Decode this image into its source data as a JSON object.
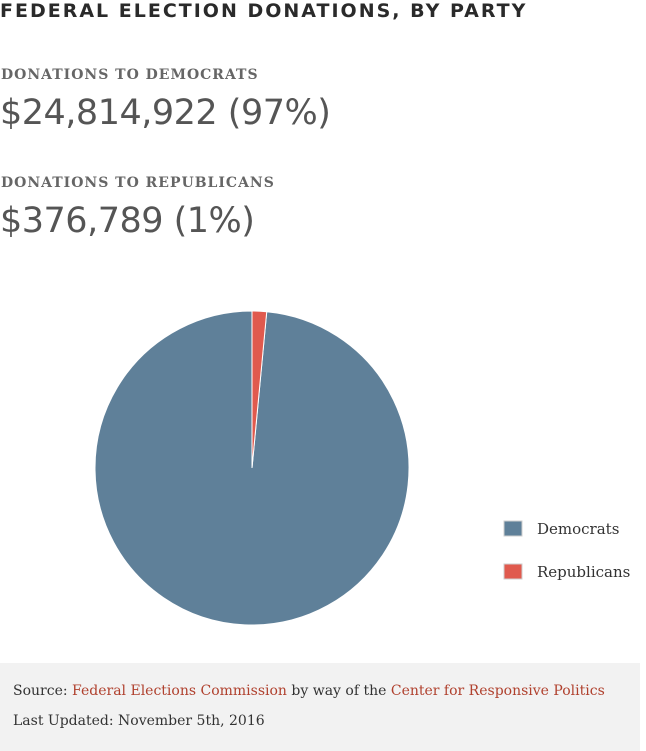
{
  "header": {
    "title": "FEDERAL ELECTION DONATIONS, BY PARTY"
  },
  "stats": {
    "democrats": {
      "label": "DONATIONS TO DEMOCRATS",
      "value": "$24,814,922 (97%)"
    },
    "republicans": {
      "label": "DONATIONS TO REPUBLICANS",
      "value": "$376,789 (1%)"
    }
  },
  "chart_data": {
    "type": "pie",
    "title": "",
    "categories": [
      "Democrats",
      "Republicans"
    ],
    "values": [
      24814922,
      376789
    ],
    "colors": [
      "#5f8099",
      "#e05a4e"
    ],
    "legend": {
      "position": "right",
      "entries": [
        "Democrats",
        "Republicans"
      ]
    }
  },
  "footer": {
    "source_prefix": "Source: ",
    "source_link": "Federal Elections Commission",
    "source_middle": " by way of the ",
    "source_link2": "Center for Responsive Politics",
    "updated": "Last Updated: November 5th, 2016"
  }
}
